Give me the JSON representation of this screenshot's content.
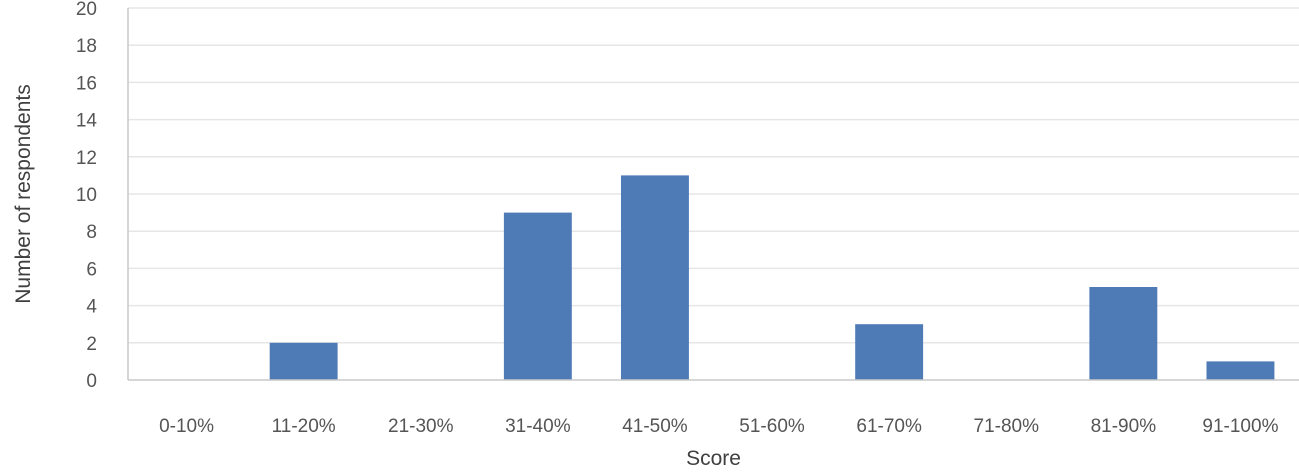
{
  "chart_data": {
    "type": "bar",
    "categories": [
      "0-10%",
      "11-20%",
      "21-30%",
      "31-40%",
      "41-50%",
      "51-60%",
      "61-70%",
      "71-80%",
      "81-90%",
      "91-100%"
    ],
    "values": [
      0,
      2,
      0,
      9,
      11,
      0,
      3,
      0,
      5,
      1
    ],
    "xlabel": "Score",
    "ylabel": "Number of respondents",
    "ylim": [
      0,
      20
    ],
    "yticks": [
      0,
      2,
      4,
      6,
      8,
      10,
      12,
      14,
      16,
      18,
      20
    ],
    "grid": true,
    "legend": "none",
    "colors": {
      "bar": "#4e7ab5",
      "grid": "#e6e6e6",
      "axis": "#c8c8c8"
    }
  }
}
